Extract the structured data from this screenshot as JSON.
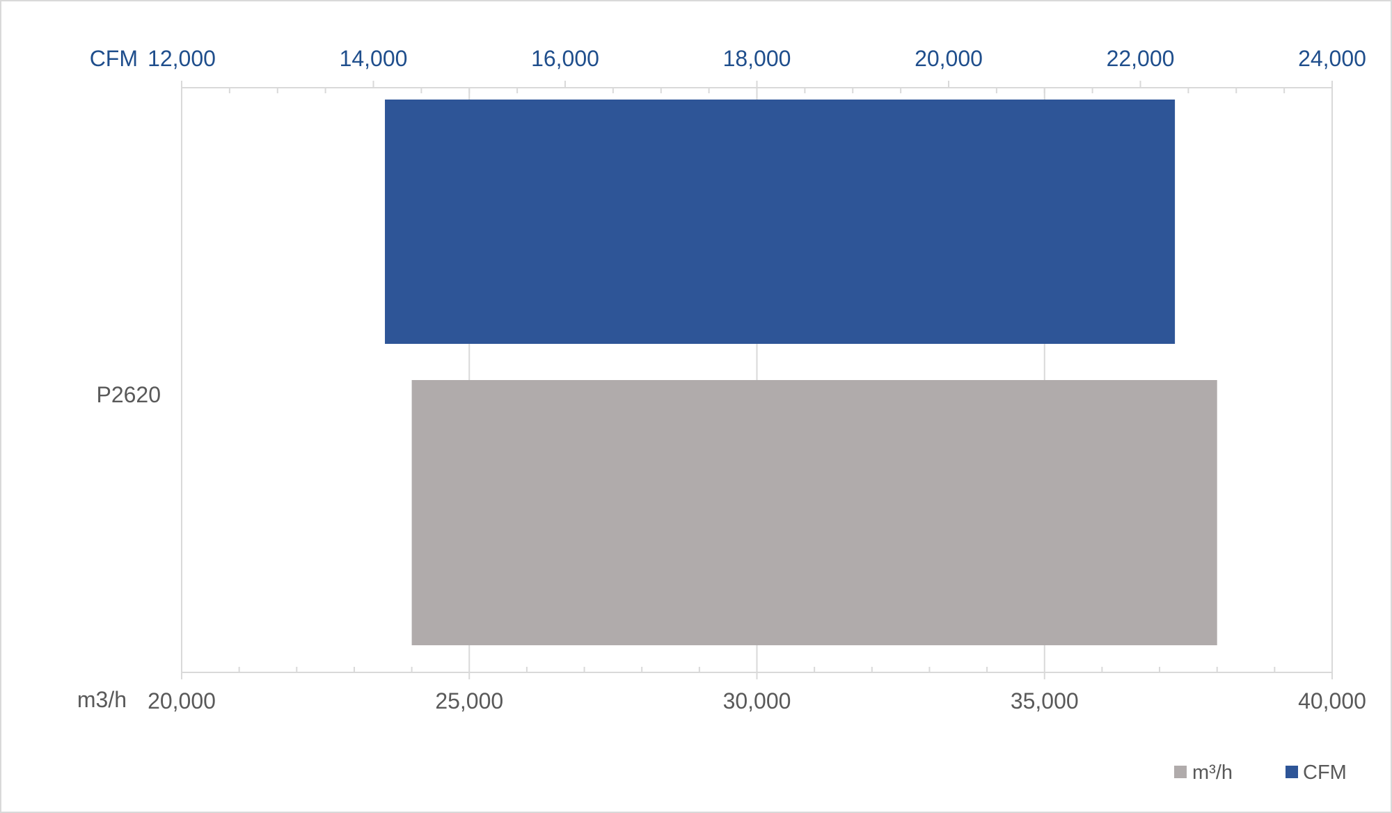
{
  "chart_data": {
    "type": "bar",
    "orientation": "horizontal",
    "category": "P2620",
    "series": [
      {
        "name": "CFM",
        "axis": "top",
        "range": [
          14120,
          22360
        ],
        "color": "#2e5597"
      },
      {
        "name": "m³/h",
        "axis": "bottom",
        "range": [
          24000,
          38000
        ],
        "color": "#b0abab"
      }
    ],
    "top_axis": {
      "unit_label": "CFM",
      "min": 12000,
      "max": 24000,
      "major_step": 2000,
      "tick_labels": [
        "12,000",
        "14,000",
        "16,000",
        "18,000",
        "20,000",
        "22,000",
        "24,000"
      ],
      "color": "#1f4e8c"
    },
    "bottom_axis": {
      "unit_label": "m3/h",
      "min": 20000,
      "max": 40000,
      "major_step": 5000,
      "tick_labels": [
        "20,000",
        "25,000",
        "30,000",
        "35,000",
        "40,000"
      ],
      "color": "#595959"
    },
    "grid": true,
    "legend": {
      "position": "bottom-right",
      "items": [
        {
          "label": "m³/h",
          "color": "#b0abab"
        },
        {
          "label": "CFM",
          "color": "#2e5597"
        }
      ]
    }
  }
}
